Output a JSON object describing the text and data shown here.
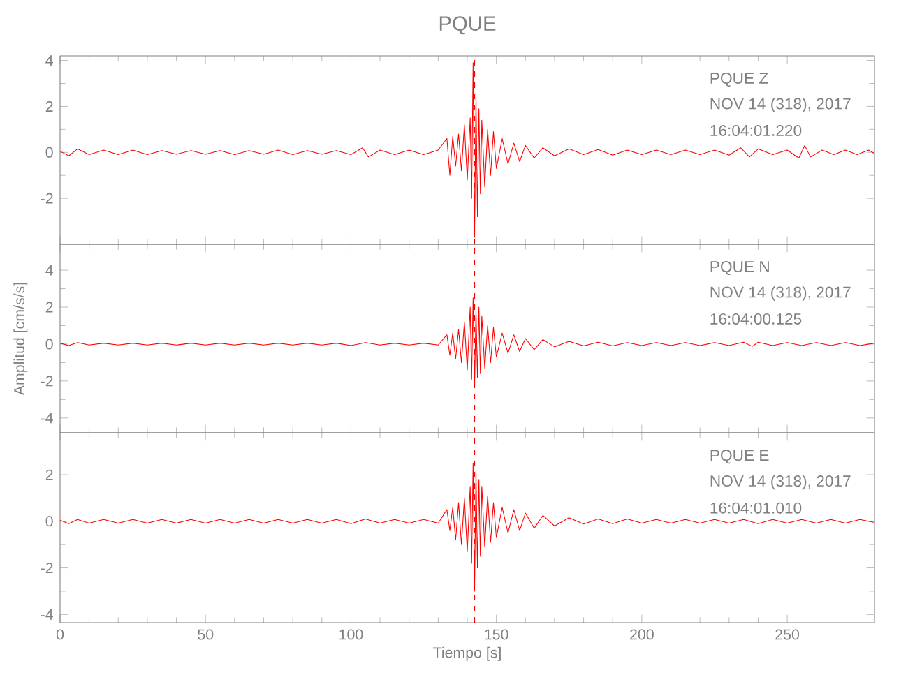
{
  "chart_data": [
    {
      "type": "line",
      "title": "PQUE",
      "tick_labels": "y",
      "xlim": [
        0,
        280
      ],
      "xticks": [
        0,
        50,
        100,
        150,
        200,
        250
      ],
      "ylim": [
        -4,
        4.2
      ],
      "yticks": [
        -2,
        0,
        2,
        4
      ],
      "annotations": [
        "PQUE   Z",
        "NOV 14 (318), 2017",
        "16:04:01.220"
      ],
      "ref_lines": [
        {
          "axis": "x",
          "value": 142.5,
          "color": "#ff0000",
          "line_style": "dashed"
        }
      ],
      "series": [
        {
          "color": "#ff0000",
          "x": [
            0,
            3,
            6,
            10,
            15,
            20,
            25,
            30,
            35,
            40,
            45,
            50,
            55,
            60,
            65,
            70,
            75,
            80,
            85,
            90,
            95,
            100,
            104,
            106,
            110,
            115,
            120,
            125,
            130,
            133,
            134,
            135,
            136,
            137,
            138,
            139,
            140,
            141,
            141.5,
            142,
            142.5,
            143,
            143.5,
            144,
            144.5,
            145,
            146,
            147,
            148,
            149,
            150,
            152,
            154,
            156,
            158,
            160,
            163,
            166,
            170,
            175,
            180,
            185,
            190,
            195,
            200,
            205,
            210,
            215,
            220,
            225,
            230,
            234,
            237,
            240,
            245,
            250,
            254,
            256,
            258,
            262,
            266,
            270,
            274,
            278,
            280
          ],
          "values": [
            0.05,
            -0.15,
            0.15,
            -0.1,
            0.1,
            -0.1,
            0.1,
            -0.1,
            0.08,
            -0.08,
            0.08,
            -0.08,
            0.08,
            -0.1,
            0.08,
            -0.08,
            0.1,
            -0.1,
            0.08,
            -0.08,
            0.08,
            -0.1,
            0.2,
            -0.2,
            0.1,
            -0.1,
            0.1,
            -0.1,
            0.1,
            0.6,
            -1.0,
            0.7,
            -0.6,
            0.8,
            -0.8,
            1.2,
            -1.2,
            1.5,
            -2.0,
            3.9,
            -3.7,
            2.5,
            -2.8,
            1.9,
            -1.8,
            1.4,
            -1.5,
            1.0,
            -1.0,
            0.9,
            -0.7,
            0.6,
            -0.5,
            0.4,
            -0.4,
            0.3,
            -0.25,
            0.2,
            -0.15,
            0.15,
            -0.1,
            0.12,
            -0.12,
            0.1,
            -0.1,
            0.1,
            -0.1,
            0.1,
            -0.1,
            0.1,
            -0.12,
            0.2,
            -0.2,
            0.15,
            -0.1,
            0.1,
            -0.25,
            0.3,
            -0.2,
            0.1,
            -0.1,
            0.1,
            -0.1,
            0.1,
            -0.05
          ]
        }
      ]
    },
    {
      "type": "line",
      "ylabel": "Amplitud [cm/s/s]",
      "tick_labels": "y",
      "xlim": [
        0,
        280
      ],
      "xticks": [
        0,
        50,
        100,
        150,
        200,
        250
      ],
      "ylim": [
        -4.8,
        5.4
      ],
      "yticks": [
        -4,
        -2,
        0,
        2,
        4
      ],
      "annotations": [
        "PQUE   N",
        "NOV 14 (318), 2017",
        "16:04:00.125"
      ],
      "ref_lines": [
        {
          "axis": "x",
          "value": 142.5,
          "color": "#ff0000",
          "line_style": "dashed"
        }
      ],
      "series": [
        {
          "color": "#ff0000",
          "x": [
            0,
            3,
            6,
            10,
            15,
            20,
            25,
            30,
            35,
            40,
            45,
            50,
            55,
            60,
            65,
            70,
            75,
            80,
            85,
            90,
            95,
            100,
            105,
            110,
            115,
            120,
            125,
            130,
            133,
            134,
            135,
            136,
            137,
            138,
            139,
            140,
            141,
            141.5,
            142,
            142.5,
            143,
            143.5,
            144,
            144.5,
            145,
            146,
            147,
            148,
            149,
            150,
            152,
            154,
            156,
            158,
            160,
            163,
            166,
            170,
            175,
            180,
            185,
            190,
            195,
            200,
            205,
            210,
            215,
            220,
            225,
            230,
            235,
            238,
            240,
            245,
            250,
            255,
            260,
            265,
            270,
            275,
            280
          ],
          "values": [
            0.05,
            -0.08,
            0.08,
            -0.05,
            0.05,
            -0.05,
            0.05,
            -0.05,
            0.05,
            -0.05,
            0.05,
            -0.05,
            0.05,
            -0.05,
            0.05,
            -0.05,
            0.05,
            -0.05,
            0.05,
            -0.05,
            0.05,
            -0.08,
            0.08,
            -0.05,
            0.05,
            -0.05,
            0.05,
            -0.05,
            0.5,
            -0.6,
            0.6,
            -0.8,
            0.8,
            -1.0,
            1.2,
            -1.4,
            2.0,
            -1.9,
            2.5,
            -2.3,
            1.9,
            -1.8,
            2.0,
            -1.6,
            1.5,
            -1.3,
            1.0,
            -1.0,
            0.9,
            -0.7,
            0.6,
            -0.5,
            0.5,
            -0.4,
            0.3,
            -0.3,
            0.25,
            -0.15,
            0.15,
            -0.1,
            0.1,
            -0.1,
            0.08,
            -0.08,
            0.08,
            -0.08,
            0.08,
            -0.08,
            0.08,
            -0.08,
            0.1,
            -0.12,
            0.1,
            -0.08,
            0.08,
            -0.08,
            0.08,
            -0.08,
            0.08,
            -0.08,
            0.05
          ]
        }
      ]
    },
    {
      "type": "line",
      "xlabel": "Tiempo [s]",
      "xlim": [
        0,
        280
      ],
      "xticks": [
        0,
        50,
        100,
        150,
        200,
        250
      ],
      "ylim": [
        -4.35,
        3.8
      ],
      "yticks": [
        -4,
        -2,
        0,
        2
      ],
      "annotations": [
        "PQUE   E",
        "NOV 14 (318), 2017",
        "16:04:01.010"
      ],
      "ref_lines": [
        {
          "axis": "x",
          "value": 142.5,
          "color": "#ff0000",
          "line_style": "dashed"
        }
      ],
      "series": [
        {
          "color": "#ff0000",
          "x": [
            0,
            3,
            6,
            10,
            15,
            20,
            25,
            30,
            35,
            40,
            45,
            50,
            55,
            60,
            65,
            70,
            75,
            80,
            85,
            90,
            95,
            100,
            105,
            110,
            115,
            120,
            125,
            130,
            133,
            134,
            135,
            136,
            137,
            138,
            139,
            140,
            141,
            141.5,
            142,
            142.5,
            143,
            143.5,
            144,
            144.5,
            145,
            146,
            147,
            148,
            149,
            150,
            152,
            154,
            156,
            158,
            160,
            163,
            166,
            170,
            175,
            180,
            185,
            190,
            195,
            200,
            205,
            210,
            215,
            220,
            225,
            230,
            235,
            240,
            245,
            250,
            255,
            260,
            265,
            270,
            275,
            280
          ],
          "values": [
            0.05,
            -0.1,
            0.08,
            -0.08,
            0.08,
            -0.08,
            0.08,
            -0.08,
            0.08,
            -0.08,
            0.08,
            -0.08,
            0.08,
            -0.08,
            0.08,
            -0.08,
            0.08,
            -0.08,
            0.08,
            -0.08,
            0.08,
            -0.1,
            0.1,
            -0.08,
            0.08,
            -0.08,
            0.08,
            -0.08,
            0.5,
            -0.4,
            0.6,
            -0.8,
            0.8,
            -1.0,
            1.0,
            -1.3,
            1.5,
            -1.8,
            2.5,
            -3.0,
            2.2,
            -2.0,
            1.8,
            -1.5,
            1.5,
            -1.1,
            1.1,
            -0.9,
            0.8,
            -0.7,
            0.6,
            -0.5,
            0.5,
            -0.4,
            0.35,
            -0.3,
            0.25,
            -0.2,
            0.15,
            -0.12,
            0.1,
            -0.1,
            0.1,
            -0.08,
            0.08,
            -0.08,
            0.08,
            -0.08,
            0.08,
            -0.08,
            0.08,
            -0.1,
            0.08,
            -0.08,
            0.08,
            -0.08,
            0.08,
            -0.08,
            0.08,
            -0.05
          ]
        }
      ]
    }
  ]
}
